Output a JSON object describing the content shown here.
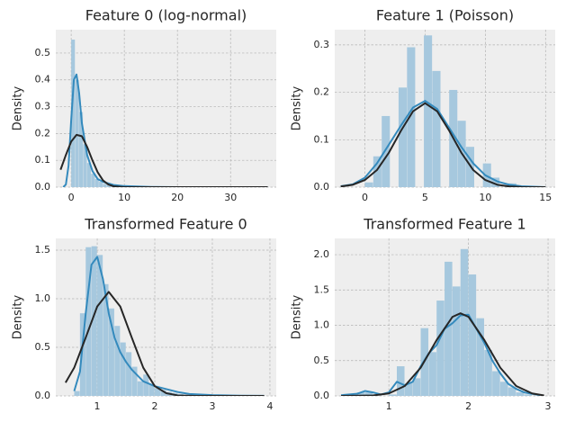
{
  "chart_data": [
    {
      "type": "histogram",
      "title": "Feature 0 (log-normal)",
      "y_label": "Density",
      "bins": [
        0,
        0.75,
        1.5,
        2.25,
        3,
        3.75,
        4.5,
        5.25,
        6,
        6.75,
        7.5,
        8.25,
        9
      ],
      "values": [
        0.55,
        0.4,
        0.28,
        0.16,
        0.09,
        0.05,
        0.03,
        0.02,
        0.012,
        0.008,
        0.005,
        0.003
      ],
      "color": "#a6c8de",
      "kde": {
        "color": "#348abd",
        "x": [
          -1.5,
          -1,
          -0.5,
          0,
          0.5,
          1,
          1.5,
          2,
          3,
          4,
          5,
          6,
          8,
          10,
          15,
          20,
          30,
          37
        ],
        "values": [
          0,
          0.01,
          0.08,
          0.25,
          0.4,
          0.42,
          0.35,
          0.24,
          0.12,
          0.06,
          0.03,
          0.02,
          0.008,
          0.004,
          0.001,
          0,
          0,
          0
        ]
      },
      "fit": {
        "color": "#262626",
        "x": [
          -2,
          -1,
          0,
          1,
          2,
          3,
          4,
          5,
          6,
          7,
          8,
          10,
          20,
          37
        ],
        "values": [
          0.065,
          0.12,
          0.17,
          0.195,
          0.19,
          0.15,
          0.1,
          0.055,
          0.025,
          0.01,
          0.003,
          0,
          0,
          0
        ]
      },
      "xlim": [
        -2.9,
        38.6
      ],
      "ylim": [
        0,
        0.587
      ],
      "xticks": [
        0,
        10,
        20,
        30
      ],
      "yticks": [
        {
          "value": 0,
          "label": "0.0"
        },
        0.1,
        0.2,
        0.3,
        0.4,
        0.5
      ],
      "grid": true
    },
    {
      "type": "histogram",
      "title": "Feature 1 (Poisson)",
      "y_label": "Density",
      "bins": [
        0,
        0.7,
        1.4,
        2.1,
        2.8,
        3.5,
        4.2,
        4.9,
        5.6,
        6.3,
        7,
        7.7,
        8.4,
        9.1,
        9.8,
        10.5,
        11.2,
        11.9,
        12.6,
        13.3,
        14
      ],
      "values": [
        0.01,
        0.065,
        0.15,
        0,
        0.21,
        0.295,
        0,
        0.32,
        0.245,
        0,
        0.205,
        0.14,
        0.085,
        0,
        0.05,
        0.02,
        0,
        0.008,
        0.002,
        0.001
      ],
      "color": "#a6c8de",
      "kde": {
        "color": "#348abd",
        "x": [
          -2,
          -1,
          0,
          1,
          2,
          3,
          4,
          5,
          6,
          7,
          8,
          9,
          10,
          11,
          12,
          13,
          14,
          15
        ],
        "values": [
          0.002,
          0.006,
          0.02,
          0.05,
          0.09,
          0.13,
          0.168,
          0.182,
          0.165,
          0.125,
          0.085,
          0.05,
          0.025,
          0.012,
          0.005,
          0.002,
          0.001,
          0
        ]
      },
      "fit": {
        "color": "#262626",
        "x": [
          -2,
          -1,
          0,
          1,
          2,
          3,
          4,
          5,
          6,
          7,
          8,
          9,
          10,
          11,
          12,
          13,
          14,
          15
        ],
        "values": [
          0.0014,
          0.005,
          0.015,
          0.036,
          0.073,
          0.119,
          0.16,
          0.177,
          0.16,
          0.119,
          0.073,
          0.036,
          0.015,
          0.005,
          0.0014,
          0.0003,
          0,
          0
        ]
      },
      "xlim": [
        -2.5,
        15.8
      ],
      "ylim": [
        0,
        0.332
      ],
      "xticks": [
        0,
        5,
        10,
        15
      ],
      "yticks": [
        {
          "value": 0,
          "label": "0.0"
        },
        0.1,
        0.2,
        0.3
      ],
      "grid": true
    },
    {
      "type": "histogram",
      "title": "Transformed Feature 0",
      "y_label": "Density",
      "bins": [
        0.6,
        0.7,
        0.8,
        0.9,
        1.0,
        1.1,
        1.2,
        1.3,
        1.4,
        1.5,
        1.6,
        1.7,
        1.8,
        1.9,
        2.0,
        2.1,
        2.2,
        2.3,
        2.4,
        2.5,
        2.6
      ],
      "values": [
        0.05,
        0.85,
        1.53,
        1.54,
        1.45,
        1.15,
        0.9,
        0.72,
        0.55,
        0.45,
        0.3,
        0.15,
        0.22,
        0.12,
        0.08,
        0.06,
        0.04,
        0.03,
        0.02,
        0.01
      ],
      "color": "#a6c8de",
      "kde": {
        "color": "#348abd",
        "x": [
          0.6,
          0.7,
          0.8,
          0.9,
          1.0,
          1.1,
          1.2,
          1.3,
          1.4,
          1.5,
          1.6,
          1.8,
          2.0,
          2.2,
          2.4,
          2.6,
          3.0,
          3.5,
          3.9
        ],
        "values": [
          0.05,
          0.25,
          0.85,
          1.35,
          1.43,
          1.2,
          0.85,
          0.6,
          0.45,
          0.35,
          0.27,
          0.15,
          0.1,
          0.07,
          0.04,
          0.02,
          0.008,
          0.002,
          0.001
        ]
      },
      "fit": {
        "color": "#262626",
        "x": [
          0.45,
          0.6,
          0.8,
          1.0,
          1.2,
          1.4,
          1.6,
          1.8,
          2.0,
          2.2,
          2.4,
          2.7,
          3.0,
          3.9
        ],
        "values": [
          0.137,
          0.29,
          0.6,
          0.92,
          1.07,
          0.92,
          0.6,
          0.29,
          0.1,
          0.028,
          0.005,
          0,
          0,
          0
        ]
      },
      "xlim": [
        0.28,
        4.11
      ],
      "ylim": [
        0,
        1.62
      ],
      "xticks": [
        1,
        2,
        3,
        4
      ],
      "yticks": [
        {
          "value": 0,
          "label": "0.0"
        },
        0.5,
        {
          "value": 1,
          "label": "1.0"
        },
        1.5
      ],
      "grid": true
    },
    {
      "type": "histogram",
      "title": "Transformed Feature 1",
      "y_label": "Density",
      "bins": [
        0.6,
        0.7,
        0.8,
        0.9,
        1.0,
        1.1,
        1.2,
        1.3,
        1.4,
        1.5,
        1.6,
        1.7,
        1.8,
        1.9,
        2.0,
        2.1,
        2.2,
        2.3,
        2.4,
        2.5,
        2.6,
        2.7,
        2.8
      ],
      "values": [
        0.05,
        0.05,
        0,
        0,
        0.02,
        0.42,
        0.18,
        0.25,
        0.96,
        0.62,
        1.35,
        1.9,
        1.55,
        2.08,
        1.72,
        1.1,
        0.65,
        0.35,
        0.2,
        0.12,
        0.05,
        0.02
      ],
      "color": "#a6c8de",
      "kde": {
        "color": "#348abd",
        "x": [
          0.4,
          0.6,
          0.7,
          0.8,
          0.9,
          1.0,
          1.1,
          1.2,
          1.3,
          1.4,
          1.5,
          1.6,
          1.7,
          1.8,
          1.9,
          2.0,
          2.1,
          2.2,
          2.3,
          2.4,
          2.5,
          2.6,
          2.7,
          2.9
        ],
        "values": [
          0.01,
          0.03,
          0.07,
          0.05,
          0.02,
          0.05,
          0.2,
          0.15,
          0.2,
          0.42,
          0.6,
          0.72,
          0.95,
          1.03,
          1.14,
          1.15,
          0.95,
          0.75,
          0.5,
          0.32,
          0.17,
          0.1,
          0.05,
          0.01
        ]
      },
      "fit": {
        "color": "#262626",
        "x": [
          0.4,
          0.8,
          1.0,
          1.2,
          1.4,
          1.6,
          1.8,
          1.9,
          2.0,
          2.2,
          2.4,
          2.6,
          2.8,
          2.95
        ],
        "values": [
          0,
          0.006,
          0.035,
          0.14,
          0.4,
          0.79,
          1.12,
          1.17,
          1.12,
          0.79,
          0.4,
          0.14,
          0.035,
          0.006
        ]
      },
      "xlim": [
        0.32,
        3.09
      ],
      "ylim": [
        0,
        2.23
      ],
      "xticks": [
        1,
        2,
        3
      ],
      "yticks": [
        {
          "value": 0,
          "label": "0.0"
        },
        0.5,
        {
          "value": 1,
          "label": "1.0"
        },
        1.5,
        {
          "value": 2,
          "label": "2.0"
        }
      ],
      "grid": true
    }
  ]
}
